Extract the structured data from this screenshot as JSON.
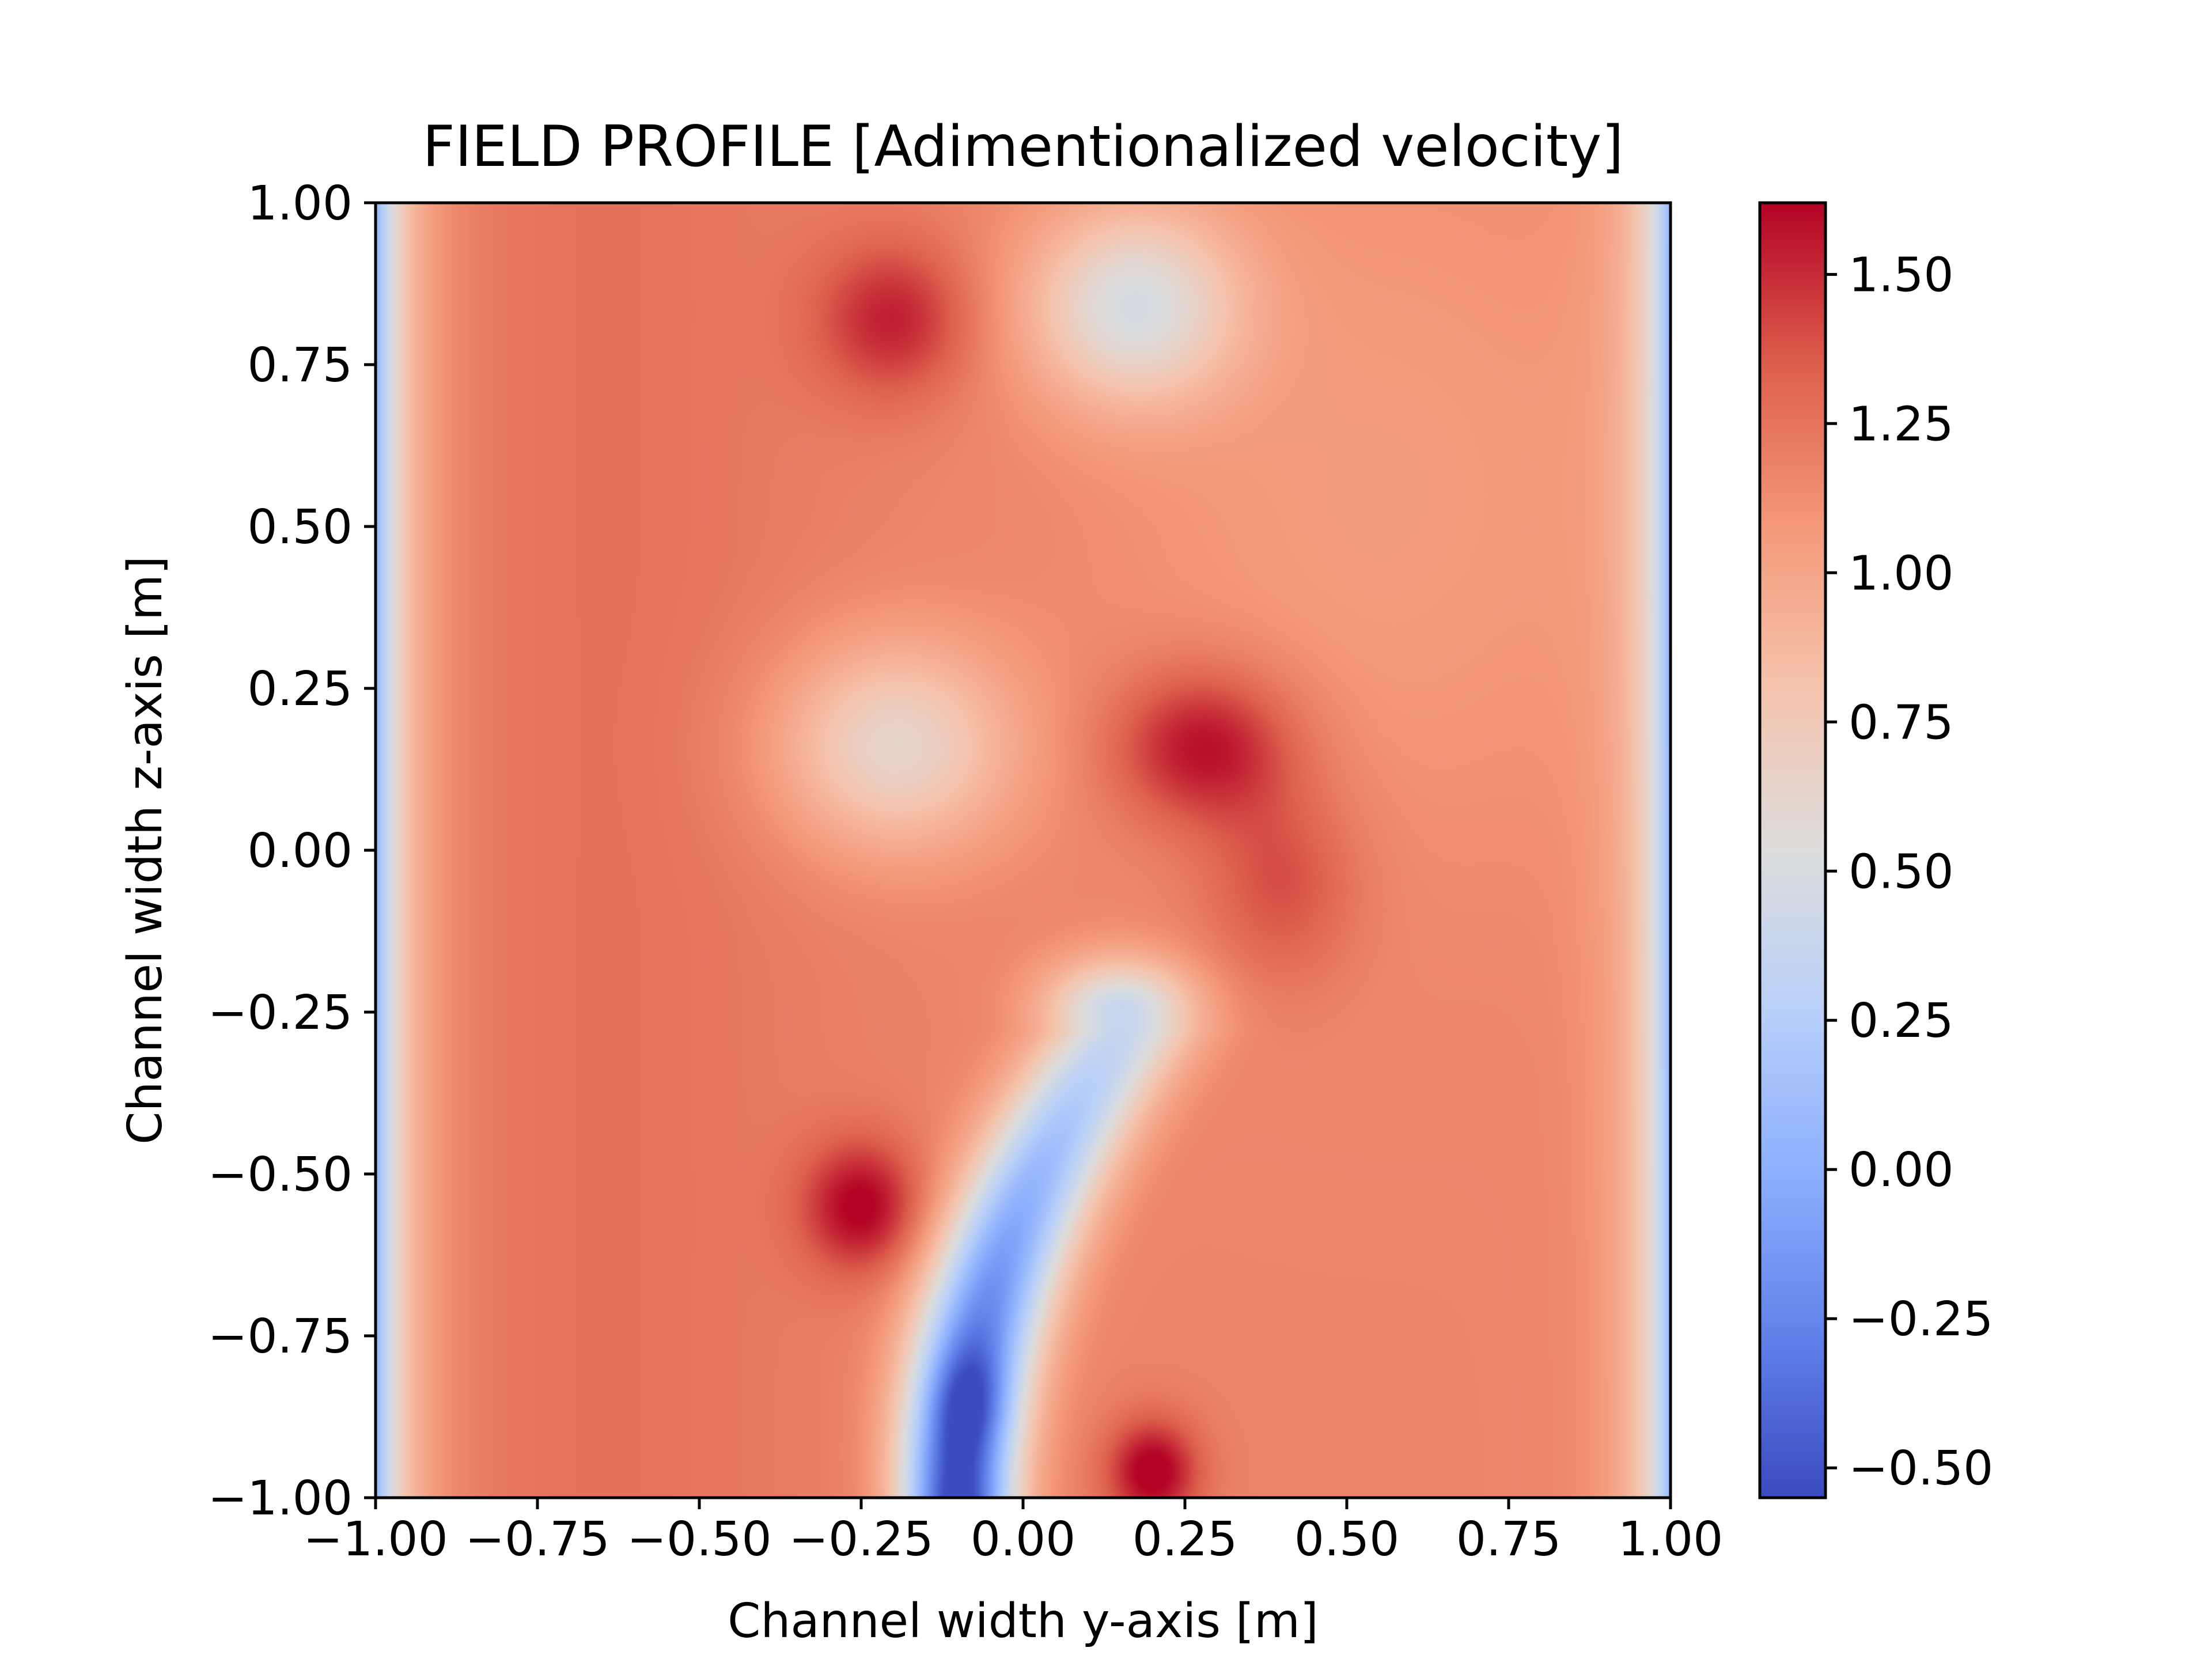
{
  "chart_data": {
    "type": "heatmap",
    "title": "FIELD PROFILE [Adimentionalized velocity]",
    "xlabel": "Channel width y-axis [m]",
    "ylabel": "Channel width z-axis [m]",
    "xlim": [
      -1.0,
      1.0
    ],
    "ylim": [
      -1.0,
      1.0
    ],
    "xticks": [
      -1.0,
      -0.75,
      -0.5,
      -0.25,
      0.0,
      0.25,
      0.5,
      0.75,
      1.0
    ],
    "yticks": [
      -1.0,
      -0.75,
      -0.5,
      -0.25,
      0.0,
      0.25,
      0.5,
      0.75,
      1.0
    ],
    "xtick_labels": [
      "−1.00",
      "−0.75",
      "−0.50",
      "−0.25",
      "0.00",
      "0.25",
      "0.50",
      "0.75",
      "1.00"
    ],
    "ytick_labels": [
      "−1.00",
      "−0.75",
      "−0.50",
      "−0.25",
      "0.00",
      "0.25",
      "0.50",
      "0.75",
      "1.00"
    ],
    "colormap": "coolwarm",
    "colorbar": {
      "vmin": -0.55,
      "vmax": 1.62,
      "ticks": [
        -0.5,
        -0.25,
        0.0,
        0.25,
        0.5,
        0.75,
        1.0,
        1.25,
        1.5
      ],
      "tick_labels": [
        "−0.50",
        "−0.25",
        "0.00",
        "0.25",
        "0.50",
        "0.75",
        "1.00",
        "1.25",
        "1.50"
      ]
    },
    "grid": false,
    "field_features": [
      {
        "y": -0.2,
        "z": 0.82,
        "value": 1.5
      },
      {
        "y": 0.17,
        "z": 0.84,
        "value": 0.55
      },
      {
        "y": -0.2,
        "z": 0.16,
        "value": 0.6
      },
      {
        "y": 0.3,
        "z": 0.15,
        "value": 1.55
      },
      {
        "y": -0.25,
        "z": -0.55,
        "value": 1.6
      },
      {
        "y": 0.2,
        "z": -0.95,
        "value": 1.62
      },
      {
        "y": -0.08,
        "z": -0.85,
        "value": -0.55
      },
      {
        "y": 0.1,
        "z": -0.4,
        "value": 0.4
      }
    ]
  }
}
